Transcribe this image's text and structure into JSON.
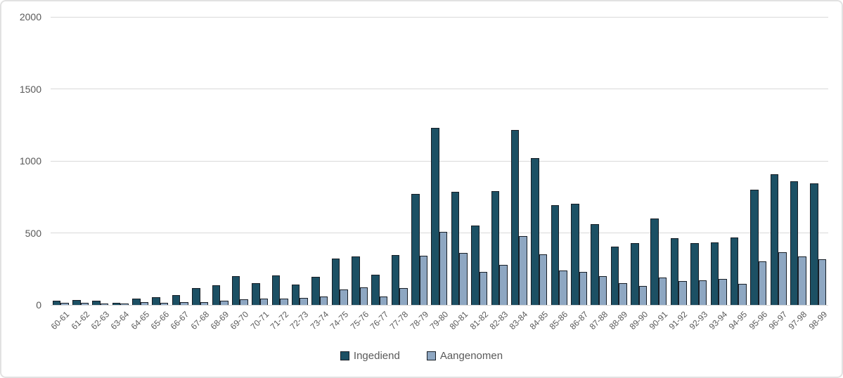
{
  "chart_data": {
    "type": "bar",
    "title": "",
    "categories": [
      "60-61",
      "61-62",
      "62-63",
      "63-64",
      "64-65",
      "65-66",
      "66-67",
      "67-68",
      "68-69",
      "69-70",
      "70-71",
      "71-72",
      "72-73",
      "73-74",
      "74-75",
      "75-76",
      "76-77",
      "77-78",
      "78-79",
      "79-80",
      "80-81",
      "81-82",
      "82-83",
      "83-84",
      "84-85",
      "85-86",
      "86-87",
      "87-88",
      "88-89",
      "89-90",
      "90-91",
      "91-92",
      "92-93",
      "93-94",
      "94-95",
      "95-96",
      "96-97",
      "97-98",
      "98-99"
    ],
    "series": [
      {
        "name": "Ingediend",
        "color": "#1C5064",
        "values": [
          30,
          32,
          28,
          13,
          44,
          52,
          68,
          118,
          138,
          202,
          150,
          206,
          140,
          196,
          320,
          338,
          212,
          345,
          770,
          1228,
          785,
          552,
          790,
          1214,
          1018,
          692,
          702,
          562,
          405,
          430,
          600,
          465,
          428,
          432,
          468,
          798,
          908,
          858,
          842
        ]
      },
      {
        "name": "Aangenomen",
        "color": "#8EA7C2",
        "values": [
          13,
          13,
          10,
          5,
          20,
          15,
          18,
          20,
          28,
          40,
          44,
          44,
          48,
          58,
          106,
          122,
          58,
          118,
          340,
          505,
          362,
          228,
          280,
          480,
          352,
          240,
          228,
          198,
          150,
          133,
          192,
          166,
          172,
          182,
          146,
          302,
          367,
          338,
          317
        ]
      }
    ],
    "xlabel": "",
    "ylabel": "",
    "ylim": [
      0,
      2000
    ],
    "yticks": [
      0,
      500,
      1000,
      1500,
      2000
    ],
    "grid": true,
    "legend_position": "bottom",
    "colors": {
      "bar_border": "#171E26",
      "gridline": "#D9D9D9",
      "tick_label": "#595959",
      "frame_border": "#E2E2E2",
      "background": "#FFFFFF"
    }
  }
}
